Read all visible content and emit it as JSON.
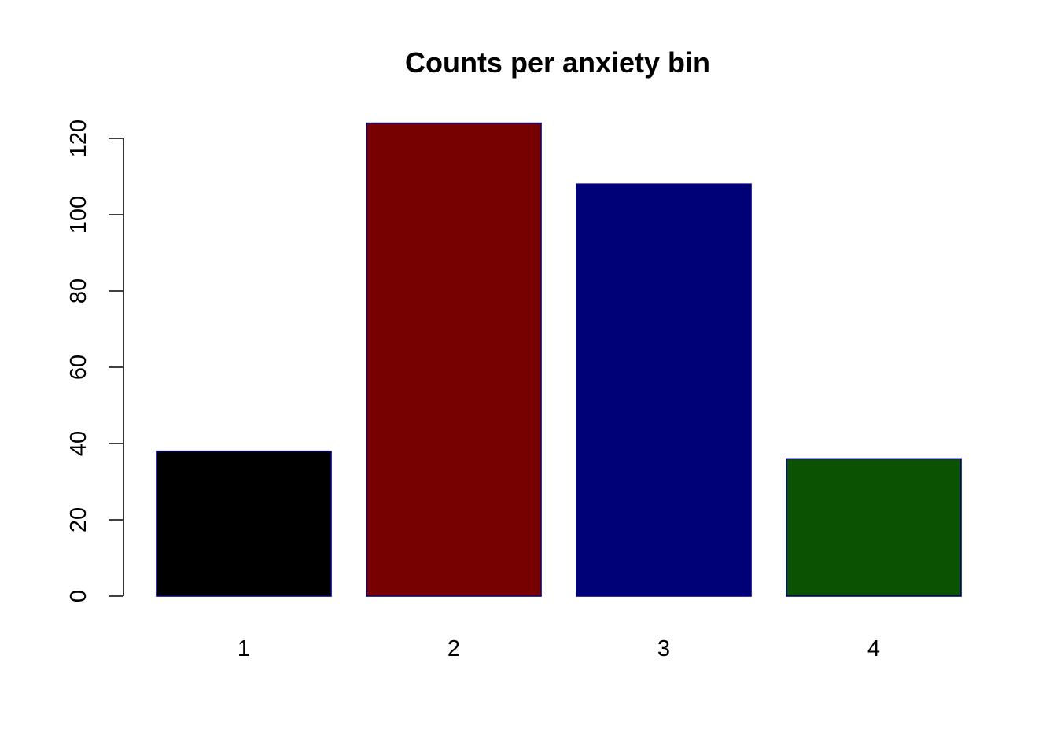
{
  "chart_data": {
    "type": "bar",
    "title": "Counts per anxiety bin",
    "xlabel": "",
    "ylabel": "",
    "categories": [
      "1",
      "2",
      "3",
      "4"
    ],
    "values": [
      38,
      124,
      108,
      36
    ],
    "colors": [
      "#000000",
      "#770000",
      "#000077",
      "#0b5302"
    ],
    "bar_border_color": "#000080",
    "ylim": [
      0,
      120
    ],
    "yticks": [
      0,
      20,
      40,
      60,
      80,
      100,
      120
    ],
    "grid": false,
    "legend": "none"
  }
}
